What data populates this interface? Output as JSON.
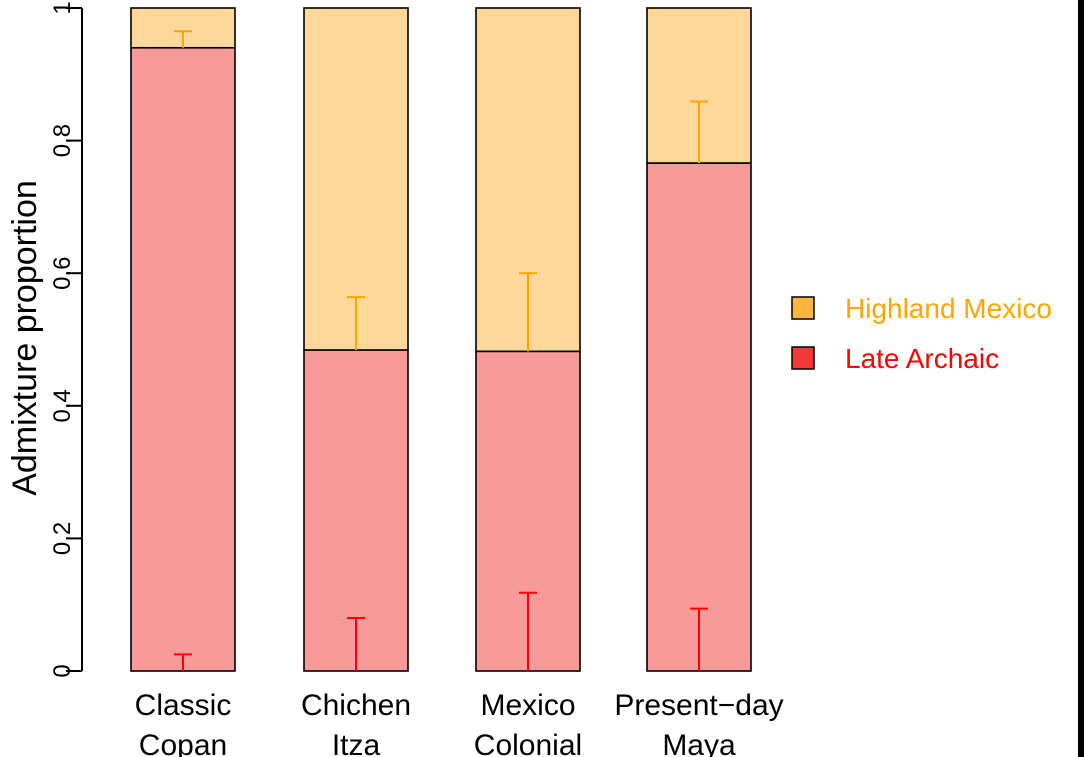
{
  "chart_data": {
    "type": "bar",
    "stacked": true,
    "ylabel": "Admixture proportion",
    "ylim": [
      0,
      1
    ],
    "yticks": [
      "0",
      "0.2",
      "0.4",
      "0.6",
      "0.8",
      "1"
    ],
    "categories": [
      [
        "Classic",
        "Copan"
      ],
      [
        "Chichen",
        "Itza"
      ],
      [
        "Mexico",
        "Colonial"
      ],
      [
        "Present−day",
        "Maya"
      ]
    ],
    "series": [
      {
        "name": "Late Archaic",
        "values": [
          0.94,
          0.484,
          0.482,
          0.766
        ],
        "error_bar": [
          0.025,
          0.08,
          0.118,
          0.094
        ],
        "color": "#f99a9a",
        "error_color": "#ff0000",
        "legend_swatch": "#f43838",
        "legend_text_color": "#ff0000"
      },
      {
        "name": "Highland Mexico",
        "values": [
          0.06,
          0.516,
          0.518,
          0.234
        ],
        "error_bar_top": [
          0.965,
          0.564,
          0.6,
          0.859
        ],
        "color": "#fdd89a",
        "error_color": "#ffa500",
        "legend_swatch": "#fbb43c",
        "legend_text_color": "#ffa500"
      }
    ],
    "legend_position": "right"
  }
}
